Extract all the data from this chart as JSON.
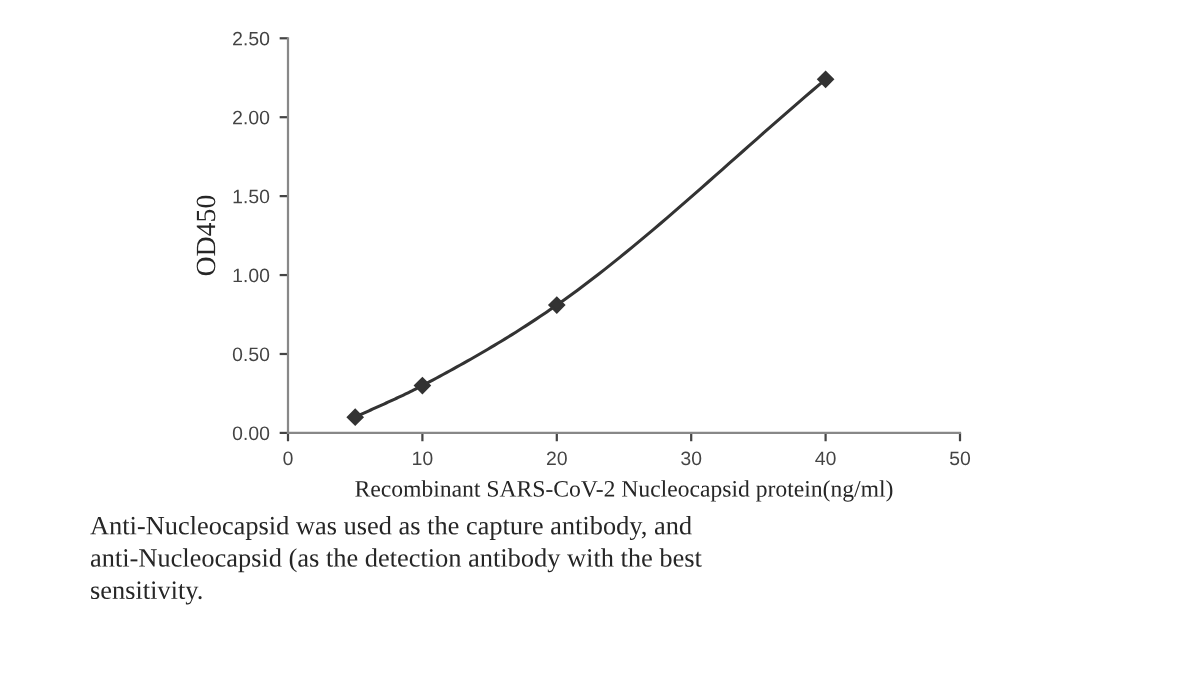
{
  "chart_data": {
    "type": "line",
    "xlabel": "Recombinant SARS-CoV-2 Nucleocapsid protein(ng/ml)",
    "ylabel": "OD450",
    "x": [
      5,
      10,
      20,
      40
    ],
    "series": [
      {
        "color": "#333333",
        "values": [
          0.1,
          0.3,
          0.81,
          2.24
        ]
      }
    ],
    "xlim": [
      0,
      50
    ],
    "xticks": [
      0,
      10,
      20,
      30,
      40,
      50
    ],
    "ylim": [
      0,
      2.5
    ],
    "yticks": [
      {
        "value": 0,
        "label": "0.00"
      },
      {
        "value": 0.5,
        "label": "0.50"
      },
      {
        "value": 1,
        "label": "1.00"
      },
      {
        "value": 1.5,
        "label": "1.50"
      },
      {
        "value": 2,
        "label": "2.00"
      },
      {
        "value": 2.5,
        "label": "2.50"
      }
    ],
    "marker": "diamond",
    "line_style": "solid",
    "grid": false,
    "legend": false,
    "annotations": [
      "Anti-Nucleocapsid was used as the capture antibody, and\nanti-Nucleocapsid (as the detection antibody with the best\nsensitivity."
    ]
  }
}
